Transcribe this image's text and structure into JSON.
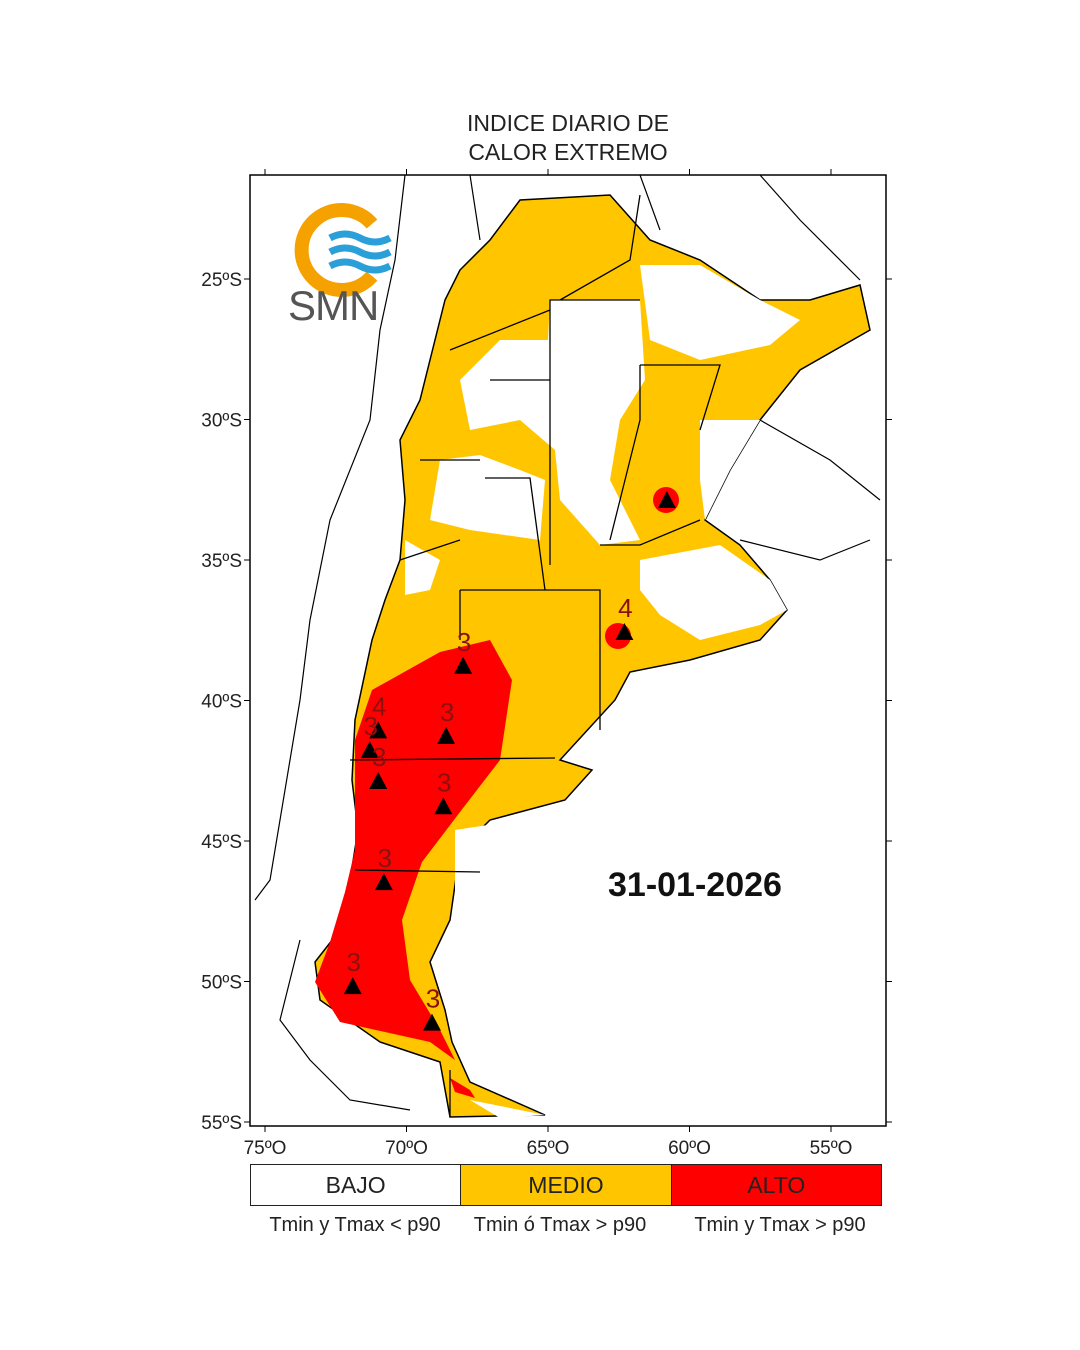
{
  "title_line1": "INDICE DIARIO DE",
  "title_line2": "CALOR EXTREMO",
  "date": "31-01-2026",
  "logo_text": "SMN",
  "axes": {
    "lat_ticks": [
      "25ºS",
      "30ºS",
      "35ºS",
      "40ºS",
      "45ºS",
      "50ºS",
      "55ºS"
    ],
    "lon_ticks": [
      "75ºO",
      "70ºO",
      "65ºO",
      "60ºO",
      "55ºO"
    ]
  },
  "legend": [
    {
      "label": "BAJO",
      "desc": "Tmin y Tmax < p90",
      "color": "#ffffff"
    },
    {
      "label": "MEDIO",
      "desc": "Tmin ó Tmax > p90",
      "color": "#ffc600"
    },
    {
      "label": "ALTO",
      "desc": "Tmin y Tmax > p90",
      "color": "#ff0000"
    }
  ],
  "stations_alert": [
    {
      "lon": -68.0,
      "lat": -38.8,
      "value": "3"
    },
    {
      "lon": -71.0,
      "lat": -41.1,
      "value": "4"
    },
    {
      "lon": -71.3,
      "lat": -41.8,
      "value": "3"
    },
    {
      "lon": -71.0,
      "lat": -42.9,
      "value": "3"
    },
    {
      "lon": -68.6,
      "lat": -41.3,
      "value": "3"
    },
    {
      "lon": -68.7,
      "lat": -43.8,
      "value": "3"
    },
    {
      "lon": -70.8,
      "lat": -46.5,
      "value": "3"
    },
    {
      "lon": -71.9,
      "lat": -50.2,
      "value": "3"
    },
    {
      "lon": -69.1,
      "lat": -51.5,
      "value": "3"
    },
    {
      "lon": -62.3,
      "lat": -37.6,
      "value": "4"
    },
    {
      "lon": -60.8,
      "lat": -32.9,
      "value": ""
    }
  ]
}
